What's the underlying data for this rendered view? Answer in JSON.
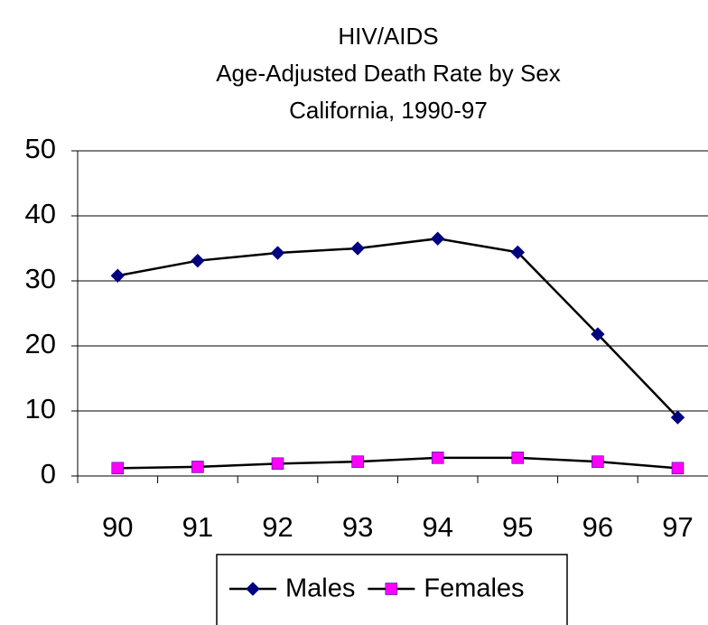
{
  "chart_data": {
    "type": "line",
    "title": "HIV/AIDS",
    "subtitle": [
      "Age-Adjusted Death Rate by Sex",
      "California, 1990-97"
    ],
    "categories": [
      "90",
      "91",
      "92",
      "93",
      "94",
      "95",
      "96",
      "97"
    ],
    "series": [
      {
        "name": "Males",
        "color": "#000080",
        "line_color": "#000000",
        "marker": "diamond",
        "values": [
          30.8,
          33.1,
          34.3,
          35.0,
          36.5,
          34.4,
          21.8,
          9.0
        ]
      },
      {
        "name": "Females",
        "color": "#ff00ff",
        "line_color": "#000000",
        "marker": "square",
        "values": [
          1.2,
          1.4,
          1.9,
          2.2,
          2.8,
          2.8,
          2.2,
          1.2
        ]
      }
    ],
    "ylim": [
      0,
      50
    ],
    "yticks": [
      0,
      10,
      20,
      30,
      40,
      50
    ],
    "grid": true,
    "legend": "bottom"
  }
}
